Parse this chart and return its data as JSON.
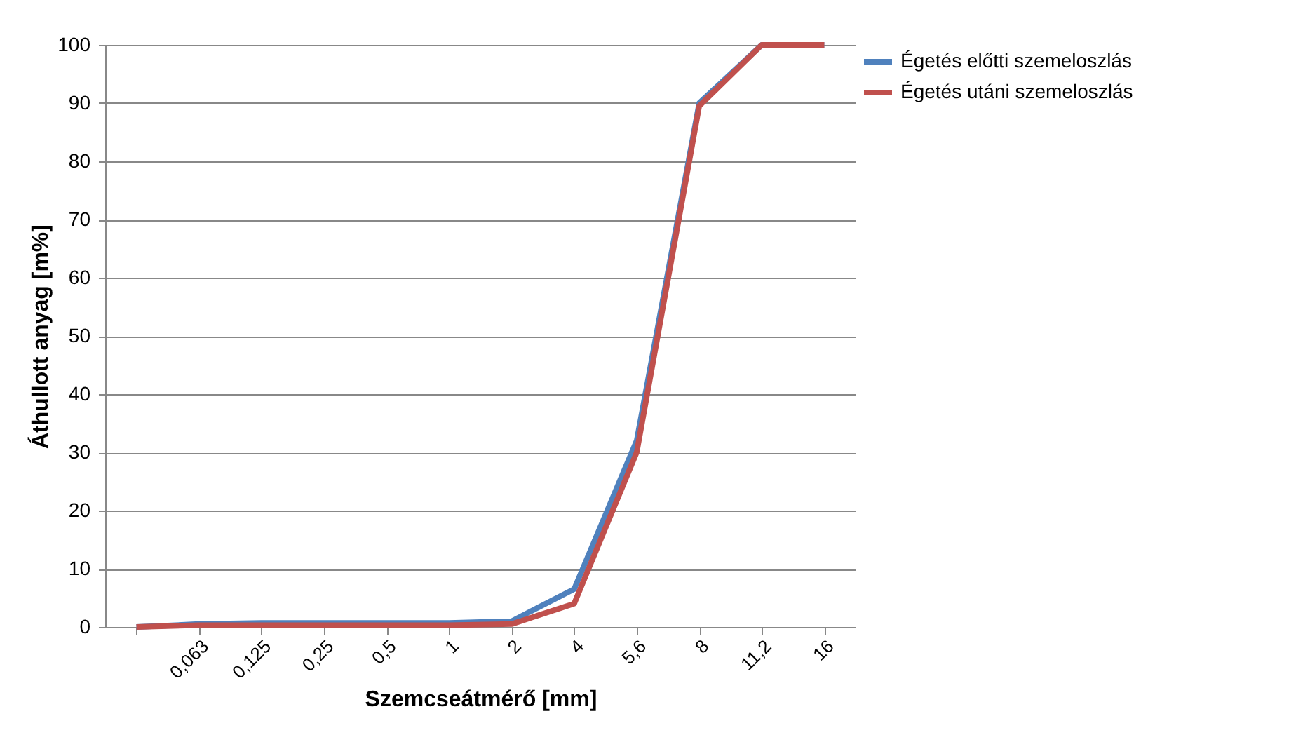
{
  "chart_data": {
    "type": "line",
    "xlabel": "Szemcseátmérő [mm]",
    "ylabel": "Áthullott anyag [m%]",
    "categories": [
      null,
      "0,063",
      "0,125",
      "0,25",
      "0,5",
      "1",
      "2",
      "4",
      "5,6",
      "8",
      "11,2",
      "16"
    ],
    "series": [
      {
        "name": "Égetés előtti szemeloszlás",
        "color": "#4f81bd",
        "values": [
          0,
          0.5,
          0.7,
          0.7,
          0.7,
          0.7,
          1,
          6.5,
          32,
          90,
          100,
          100
        ]
      },
      {
        "name": "Égetés utáni szemeloszlás",
        "color": "#c0504d",
        "values": [
          0,
          0.3,
          0.3,
          0.3,
          0.3,
          0.3,
          0.5,
          4,
          30,
          89.5,
          100,
          100
        ]
      }
    ],
    "ylim": [
      0,
      100
    ],
    "yticks": [
      0,
      10,
      20,
      30,
      40,
      50,
      60,
      70,
      80,
      90,
      100
    ],
    "grid": "y",
    "legend": "right",
    "marker": "none",
    "line_style": "solid"
  }
}
